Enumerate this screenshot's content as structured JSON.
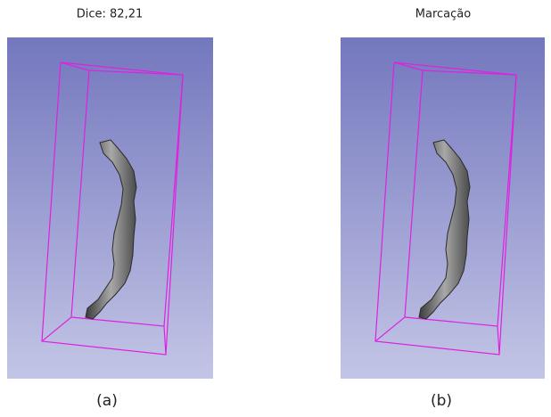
{
  "panels": [
    {
      "title": "Dice: 82,21",
      "caption": "(a)"
    },
    {
      "title": "Marcação",
      "caption": "(b)"
    }
  ]
}
